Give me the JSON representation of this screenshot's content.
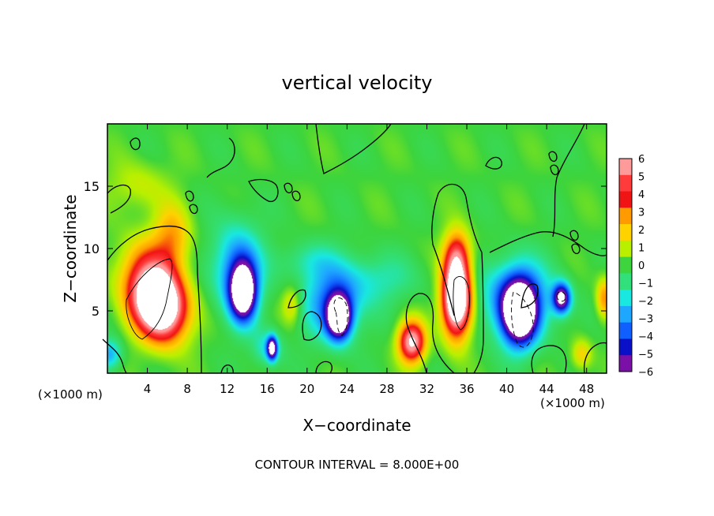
{
  "chart_data": {
    "type": "heatmap",
    "title": "vertical velocity",
    "xlabel": "X−coordinate",
    "ylabel": "Z−coordinate",
    "x_unit_left": "(×1000 m)",
    "x_unit_right": "(×1000 m)",
    "xlim": [
      0,
      50
    ],
    "ylim": [
      0,
      20
    ],
    "xticks": [
      4,
      8,
      12,
      16,
      20,
      24,
      28,
      32,
      36,
      40,
      44,
      48
    ],
    "yticks": [
      5,
      10,
      15
    ],
    "footer": "CONTOUR INTERVAL = 8.000E+00",
    "colorbar": {
      "ticks": [
        "6",
        "5",
        "4",
        "3",
        "2",
        "1",
        "0",
        "−1",
        "−2",
        "−3",
        "−4",
        "−5",
        "−6"
      ],
      "range": [
        -6,
        6
      ],
      "colors": {
        "6": "#ff9a9a",
        "5": "#ff3b3b",
        "4": "#f01414",
        "3": "#ff9a00",
        "2": "#ffd200",
        "1": "#b8f000",
        "0": "#3dd43d",
        "-1": "#31e07a",
        "-2": "#19e8e0",
        "-3": "#1ea7ff",
        "-4": "#1060ff",
        "-5": "#0a10c8",
        "-6": "#7a10a8"
      }
    },
    "background_value": 0,
    "saturated_color": "#ffffff",
    "features": [
      {
        "x": 5.2,
        "z": 5.5,
        "sx": 2.4,
        "sz": 2.8,
        "value": 11,
        "rot": 0.55
      },
      {
        "x": 4.0,
        "z": 8.0,
        "sx": 3.0,
        "sz": 3.0,
        "value": 3
      },
      {
        "x": 6.5,
        "z": 11.0,
        "sx": 1.8,
        "sz": 2.5,
        "value": 2.5
      },
      {
        "x": 3.0,
        "z": 15.0,
        "sx": 3.0,
        "sz": 2.0,
        "value": 1.2
      },
      {
        "x": 0.2,
        "z": 1.5,
        "sx": 1.2,
        "sz": 1.2,
        "value": -3
      },
      {
        "x": 13.6,
        "z": 6.5,
        "sx": 1.3,
        "sz": 2.2,
        "value": -9
      },
      {
        "x": 13.0,
        "z": 8.5,
        "sx": 2.5,
        "sz": 3.5,
        "value": -3.5
      },
      {
        "x": 16.5,
        "z": 2.0,
        "sx": 0.5,
        "sz": 0.9,
        "value": -7
      },
      {
        "x": 16.0,
        "z": 2.0,
        "sx": 1.5,
        "sz": 1.5,
        "value": -2
      },
      {
        "x": 18.5,
        "z": 5.5,
        "sx": 1.0,
        "sz": 1.5,
        "value": 2
      },
      {
        "x": 23.2,
        "z": 4.5,
        "sx": 1.2,
        "sz": 1.7,
        "value": -9
      },
      {
        "x": 22.5,
        "z": 5.8,
        "sx": 3.0,
        "sz": 3.0,
        "value": -3.5
      },
      {
        "x": 30.5,
        "z": 2.5,
        "sx": 1.3,
        "sz": 1.6,
        "value": 7
      },
      {
        "x": 35.0,
        "z": 6.0,
        "sx": 1.4,
        "sz": 2.9,
        "value": 11
      },
      {
        "x": 35.0,
        "z": 9.5,
        "sx": 1.3,
        "sz": 2.0,
        "value": 4
      },
      {
        "x": 41.3,
        "z": 4.8,
        "sx": 1.7,
        "sz": 2.5,
        "value": -9
      },
      {
        "x": 41.0,
        "z": 6.0,
        "sx": 3.5,
        "sz": 3.0,
        "value": -4
      },
      {
        "x": 45.5,
        "z": 6.0,
        "sx": 0.9,
        "sz": 1.2,
        "value": -7
      },
      {
        "x": 49.8,
        "z": 6.0,
        "sx": 0.8,
        "sz": 1.6,
        "value": 3
      },
      {
        "x": 47.5,
        "z": 1.5,
        "sx": 1.0,
        "sz": 1.2,
        "value": 2
      },
      {
        "x": 27.0,
        "z": 7.5,
        "sx": 4.0,
        "sz": 2.0,
        "value": -1.5
      },
      {
        "x": 20.0,
        "z": 9.0,
        "sx": 3.0,
        "sz": 1.5,
        "value": -1.2
      }
    ]
  }
}
